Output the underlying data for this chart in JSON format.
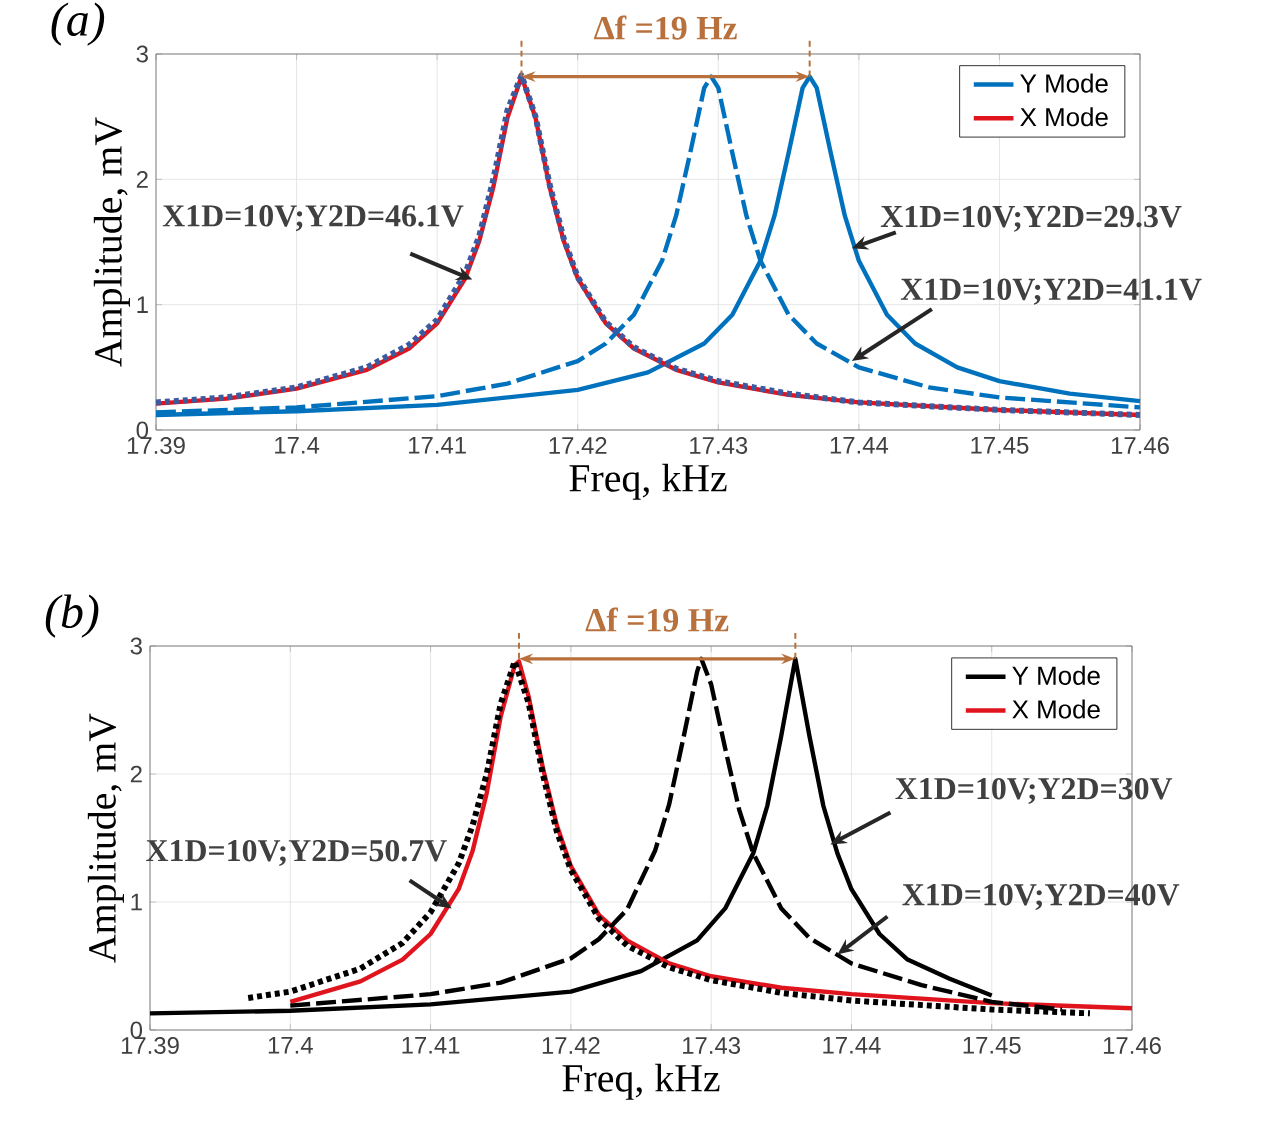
{
  "chart_data": [
    {
      "type": "line",
      "title": "(a)",
      "xlabel": "Freq, kHz",
      "ylabel": "Amplitude, mV",
      "xlim": [
        17.39,
        17.46
      ],
      "ylim": [
        0,
        3
      ],
      "xticks": [
        17.39,
        17.4,
        17.41,
        17.42,
        17.43,
        17.44,
        17.45,
        17.46
      ],
      "yticks": [
        0,
        1,
        2,
        3
      ],
      "grid": true,
      "legend": "top right",
      "series": [
        {
          "name": "Y Mode",
          "color": "#0072bd",
          "line_style": "solid",
          "x": [
            17.39,
            17.4,
            17.41,
            17.42,
            17.425,
            17.429,
            17.431,
            17.433,
            17.434,
            17.435,
            17.436,
            17.4365,
            17.437,
            17.438,
            17.439,
            17.44,
            17.442,
            17.444,
            17.447,
            17.45,
            17.455,
            17.46
          ],
          "values": [
            0.12,
            0.15,
            0.2,
            0.32,
            0.46,
            0.69,
            0.92,
            1.35,
            1.71,
            2.21,
            2.73,
            2.82,
            2.73,
            2.21,
            1.71,
            1.35,
            0.92,
            0.69,
            0.5,
            0.39,
            0.29,
            0.23
          ]
        },
        {
          "name": "X Mode",
          "color": "#e0141c",
          "line_style": "solid",
          "x": [
            17.39,
            17.395,
            17.4,
            17.405,
            17.408,
            17.41,
            17.412,
            17.413,
            17.414,
            17.415,
            17.416,
            17.417,
            17.418,
            17.419,
            17.42,
            17.422,
            17.424,
            17.427,
            17.43,
            17.435,
            17.44,
            17.45,
            17.46
          ],
          "values": [
            0.21,
            0.25,
            0.33,
            0.48,
            0.65,
            0.85,
            1.21,
            1.51,
            1.94,
            2.49,
            2.82,
            2.49,
            1.94,
            1.51,
            1.21,
            0.85,
            0.65,
            0.48,
            0.38,
            0.28,
            0.22,
            0.16,
            0.12
          ]
        },
        {
          "color": "#0072bd",
          "line_style": "dashed",
          "x": [
            17.39,
            17.4,
            17.41,
            17.415,
            17.42,
            17.422,
            17.424,
            17.426,
            17.427,
            17.428,
            17.429,
            17.4295,
            17.43,
            17.431,
            17.432,
            17.433,
            17.435,
            17.437,
            17.44,
            17.445,
            17.45,
            17.46
          ],
          "values": [
            0.14,
            0.18,
            0.27,
            0.37,
            0.55,
            0.69,
            0.92,
            1.35,
            1.71,
            2.21,
            2.73,
            2.82,
            2.73,
            2.21,
            1.71,
            1.35,
            0.92,
            0.69,
            0.5,
            0.34,
            0.26,
            0.18
          ]
        },
        {
          "color": "#3c5aa0",
          "line_style": "dotted",
          "x": [
            17.39,
            17.395,
            17.4,
            17.405,
            17.408,
            17.41,
            17.412,
            17.413,
            17.414,
            17.415,
            17.416,
            17.417,
            17.418,
            17.419,
            17.42,
            17.422,
            17.424,
            17.427,
            17.43,
            17.435,
            17.44,
            17.45,
            17.46
          ],
          "values": [
            0.22,
            0.26,
            0.34,
            0.5,
            0.68,
            0.88,
            1.25,
            1.55,
            2.0,
            2.55,
            2.83,
            2.5,
            1.96,
            1.53,
            1.22,
            0.86,
            0.66,
            0.49,
            0.39,
            0.29,
            0.22,
            0.16,
            0.12
          ]
        }
      ],
      "annotations": [
        "Δf =19 Hz",
        {
          "text": "X1D=10V;Y2D=46.1V",
          "x": 17.4125,
          "y": 1.2
        },
        {
          "text": "X1D=10V;Y2D=29.3V",
          "x": 17.4395,
          "y": 1.45
        },
        {
          "text": "X1D=10V;Y2D=41.1V",
          "x": 17.4395,
          "y": 0.55
        }
      ]
    },
    {
      "type": "line",
      "title": "(b)",
      "xlabel": "Freq, kHz",
      "ylabel": "Amplitude, mV",
      "xlim": [
        17.39,
        17.46
      ],
      "ylim": [
        0,
        3
      ],
      "xticks": [
        17.39,
        17.4,
        17.41,
        17.42,
        17.43,
        17.44,
        17.45,
        17.46
      ],
      "yticks": [
        0,
        1,
        2,
        3
      ],
      "grid": true,
      "legend": "top right",
      "series": [
        {
          "name": "Y Mode",
          "color": "#000000",
          "line_style": "solid",
          "x": [
            17.39,
            17.4,
            17.41,
            17.42,
            17.425,
            17.429,
            17.431,
            17.433,
            17.434,
            17.435,
            17.436,
            17.437,
            17.438,
            17.439,
            17.44,
            17.442,
            17.444,
            17.447,
            17.45
          ],
          "values": [
            0.13,
            0.15,
            0.2,
            0.3,
            0.46,
            0.7,
            0.95,
            1.38,
            1.75,
            2.3,
            2.9,
            2.3,
            1.75,
            1.38,
            1.1,
            0.75,
            0.55,
            0.4,
            0.27
          ]
        },
        {
          "name": "X Mode",
          "color": "#e0141c",
          "line_style": "solid",
          "x": [
            17.4,
            17.405,
            17.408,
            17.41,
            17.412,
            17.413,
            17.414,
            17.415,
            17.416,
            17.4163,
            17.417,
            17.418,
            17.419,
            17.42,
            17.422,
            17.424,
            17.427,
            17.43,
            17.435,
            17.44,
            17.45,
            17.46
          ],
          "values": [
            0.22,
            0.38,
            0.55,
            0.75,
            1.1,
            1.4,
            1.85,
            2.45,
            2.85,
            2.88,
            2.6,
            2.05,
            1.6,
            1.28,
            0.9,
            0.7,
            0.52,
            0.42,
            0.33,
            0.28,
            0.21,
            0.17
          ]
        },
        {
          "color": "#000000",
          "line_style": "dashed",
          "x": [
            17.4,
            17.41,
            17.415,
            17.42,
            17.422,
            17.424,
            17.426,
            17.427,
            17.428,
            17.429,
            17.4293,
            17.43,
            17.431,
            17.432,
            17.433,
            17.435,
            17.437,
            17.44,
            17.445,
            17.45,
            17.455
          ],
          "values": [
            0.19,
            0.28,
            0.37,
            0.56,
            0.71,
            0.94,
            1.4,
            1.76,
            2.27,
            2.8,
            2.9,
            2.7,
            2.2,
            1.72,
            1.38,
            0.95,
            0.72,
            0.52,
            0.35,
            0.22,
            0.16
          ]
        },
        {
          "color": "#000000",
          "line_style": "dotted",
          "x": [
            17.397,
            17.4,
            17.405,
            17.408,
            17.41,
            17.412,
            17.413,
            17.414,
            17.415,
            17.416,
            17.417,
            17.418,
            17.419,
            17.42,
            17.422,
            17.424,
            17.427,
            17.43,
            17.435,
            17.44,
            17.45,
            17.457
          ],
          "values": [
            0.25,
            0.3,
            0.48,
            0.68,
            0.92,
            1.3,
            1.6,
            2.0,
            2.55,
            2.88,
            2.55,
            2.0,
            1.55,
            1.25,
            0.87,
            0.66,
            0.49,
            0.39,
            0.29,
            0.23,
            0.16,
            0.13
          ]
        }
      ],
      "annotations": [
        "Δf =19 Hz",
        {
          "text": "X1D=10V;Y2D=50.7V",
          "x": 17.4115,
          "y": 0.95
        },
        {
          "text": "X1D=10V;Y2D=30V",
          "x": 17.4385,
          "y": 1.45
        },
        {
          "text": "X1D=10V;Y2D=40V",
          "x": 17.439,
          "y": 0.59
        }
      ]
    }
  ]
}
